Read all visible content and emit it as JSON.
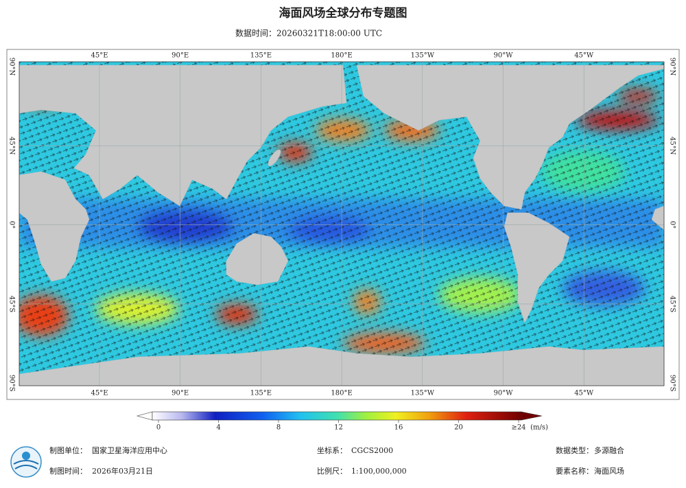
{
  "header": {
    "title": "海面风场全球分布专题图",
    "subtitle": "数据时间：20260321T18:00:00 UTC"
  },
  "map": {
    "lon_labels": [
      "45°E",
      "90°E",
      "135°E",
      "180°E",
      "135°W",
      "90°W",
      "45°W"
    ],
    "lat_labels": [
      "90°N",
      "45°N",
      "0°",
      "45°S",
      "90°S"
    ]
  },
  "colorbar": {
    "ticks": [
      0,
      4,
      8,
      12,
      16,
      20,
      {
        "value": 24,
        "label": "≥24"
      }
    ],
    "unit": "(m/s)"
  },
  "footer": {
    "items": [
      {
        "label": "制图单位：",
        "value": "国家卫星海洋应用中心"
      },
      {
        "label": "坐标系：",
        "value": "CGCS2000"
      },
      {
        "label": "数据类型：",
        "value": "多源融合"
      },
      {
        "label": "制图时间：",
        "value": "2026年03月21日"
      },
      {
        "label": "比例尺：",
        "value": "1:100,000,000"
      },
      {
        "label": "要素名称：",
        "value": "海面风场"
      }
    ]
  }
}
